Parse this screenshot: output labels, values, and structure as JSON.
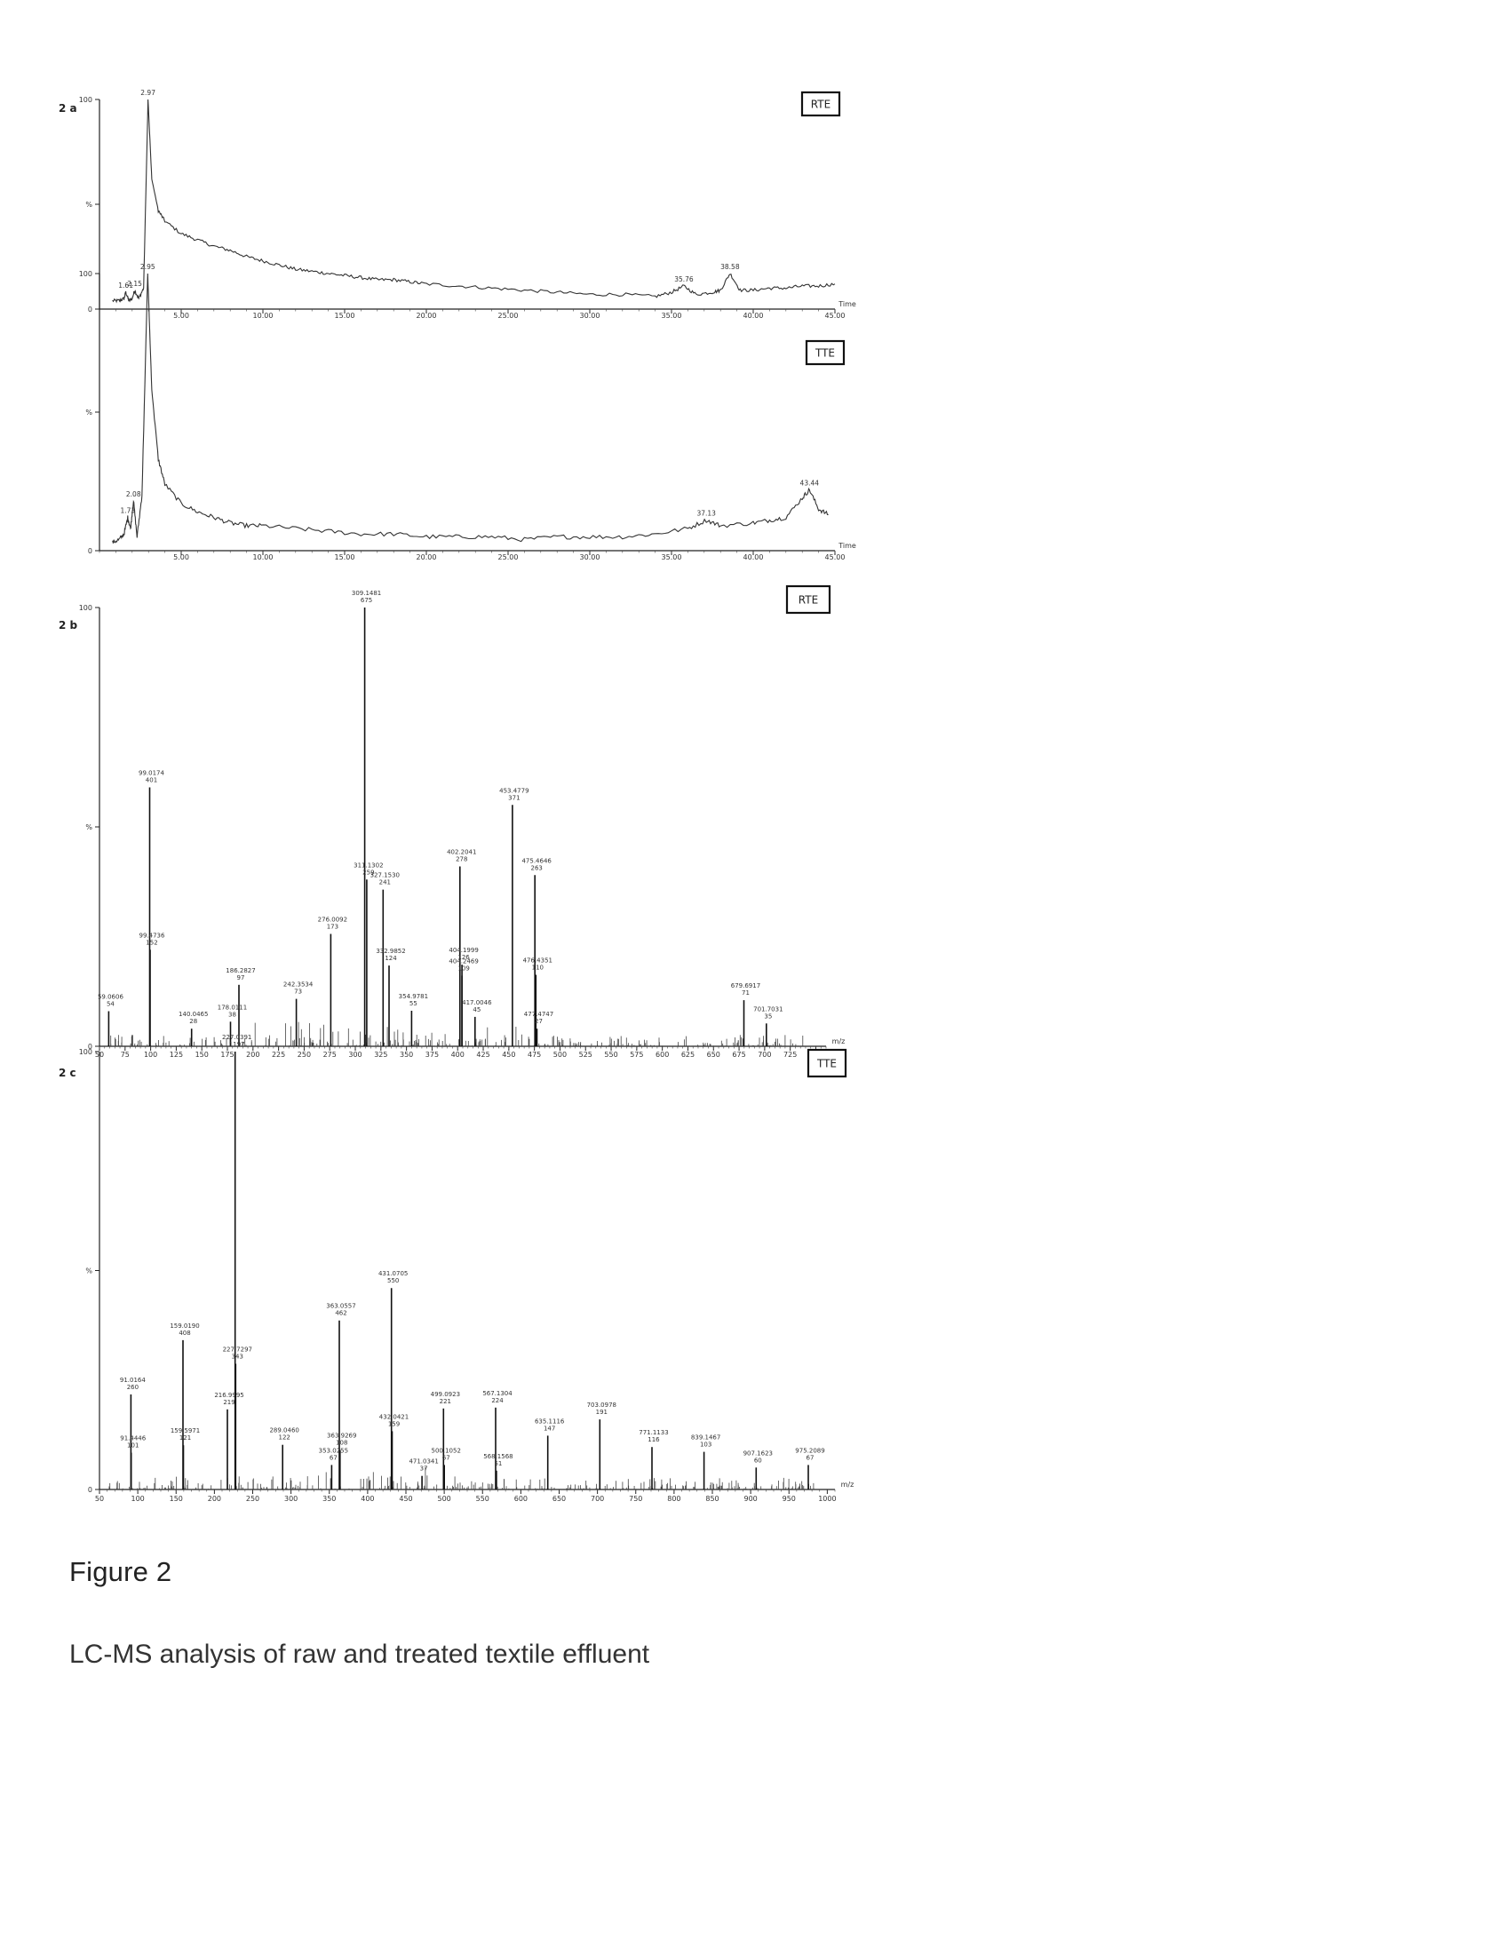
{
  "figure": {
    "title": "Figure 2",
    "caption": "LC-MS analysis of raw and treated textile effluent"
  },
  "chart_data": [
    {
      "type": "line",
      "panel_label": "2 a",
      "sample_label": "RTE",
      "xlabel": "Time",
      "xlim": [
        0,
        45
      ],
      "ylim": [
        0,
        100
      ],
      "xticks": [
        "5.00",
        "10.00",
        "15.00",
        "20.00",
        "25.00",
        "30.00",
        "35.00",
        "40.00",
        "45.00"
      ],
      "yticks": [
        "0",
        "%",
        "100"
      ],
      "peak_labels": [
        {
          "x": 1.61,
          "label": "1.61"
        },
        {
          "x": 2.15,
          "label": "2.15"
        },
        {
          "x": 2.97,
          "label": "2.97"
        },
        {
          "x": 35.76,
          "label": "35.76"
        },
        {
          "x": 38.58,
          "label": "38.58"
        }
      ],
      "x": [
        0.8,
        1.2,
        1.5,
        1.61,
        1.8,
        2.0,
        2.15,
        2.4,
        2.7,
        2.97,
        3.2,
        3.6,
        4.0,
        5.0,
        6.0,
        7.0,
        8.0,
        9.0,
        10.0,
        11.0,
        12.0,
        13.0,
        14.0,
        15.0,
        16.0,
        17.0,
        18.0,
        19.0,
        20.0,
        22.0,
        24.0,
        26.0,
        28.0,
        30.0,
        32.0,
        34.0,
        35.0,
        35.76,
        36.5,
        37.5,
        38.0,
        38.58,
        39.2,
        40.0,
        41.0,
        42.0,
        43.0,
        44.0,
        45.0
      ],
      "values": [
        4,
        4,
        5,
        8,
        4,
        5,
        9,
        5,
        10,
        100,
        62,
        47,
        42,
        36,
        33,
        30,
        28,
        25,
        23,
        21,
        19,
        18,
        17,
        16,
        15,
        14,
        14,
        13,
        12,
        11,
        10,
        9,
        8,
        7,
        7,
        6,
        8,
        11,
        7,
        8,
        9,
        17,
        9,
        9,
        10,
        10,
        11,
        11,
        12
      ]
    },
    {
      "type": "line",
      "panel_label": "",
      "sample_label": "TTE",
      "xlabel": "Time",
      "xlim": [
        0,
        45
      ],
      "ylim": [
        0,
        100
      ],
      "xticks": [
        "5.00",
        "10.00",
        "15.00",
        "20.00",
        "25.00",
        "30.00",
        "35.00",
        "40.00",
        "45.00"
      ],
      "yticks": [
        "0",
        "%",
        "100"
      ],
      "peak_labels": [
        {
          "x": 1.73,
          "label": "1.73"
        },
        {
          "x": 2.08,
          "label": "2.08"
        },
        {
          "x": 2.95,
          "label": "2.95"
        },
        {
          "x": 37.13,
          "label": "37.13"
        },
        {
          "x": 43.44,
          "label": "43.44"
        }
      ],
      "x": [
        0.8,
        1.2,
        1.5,
        1.73,
        1.9,
        2.08,
        2.3,
        2.6,
        2.95,
        3.2,
        3.6,
        4.0,
        5.0,
        6.0,
        7.0,
        8.0,
        9.0,
        10.0,
        12.0,
        14.0,
        16.0,
        18.0,
        20.0,
        22.0,
        24.0,
        26.0,
        28.0,
        30.0,
        32.0,
        34.0,
        36.0,
        37.13,
        38.0,
        40.0,
        41.0,
        42.0,
        43.0,
        43.44,
        44.0,
        44.6
      ],
      "values": [
        3,
        4,
        6,
        12,
        8,
        18,
        5,
        20,
        100,
        58,
        33,
        24,
        17,
        14,
        12,
        10,
        9,
        9,
        8,
        7,
        6,
        6,
        5,
        5,
        5,
        4,
        5,
        5,
        5,
        6,
        8,
        11,
        9,
        10,
        11,
        12,
        19,
        22,
        15,
        13
      ]
    },
    {
      "type": "bar",
      "panel_label": "2 b",
      "sample_label": "RTE",
      "xlabel": "m/z",
      "xlim": [
        50,
        760
      ],
      "ylim": [
        0,
        100
      ],
      "xticks": [
        "50",
        "75",
        "100",
        "125",
        "150",
        "175",
        "200",
        "225",
        "250",
        "275",
        "300",
        "325",
        "350",
        "375",
        "400",
        "425",
        "450",
        "475",
        "500",
        "525",
        "550",
        "575",
        "600",
        "625",
        "650",
        "675",
        "700",
        "725",
        "750"
      ],
      "yticks": [
        "0",
        "%",
        "100"
      ],
      "x": [
        59.0606,
        99.0174,
        99.4736,
        140.0465,
        178.0111,
        186.2827,
        242.3534,
        276.0092,
        309.1481,
        311.1302,
        327.153,
        332.9852,
        354.9781,
        402.2041,
        404.1999,
        404.2469,
        417.0046,
        453.4779,
        475.4646,
        476.4351,
        477.4747,
        679.6917,
        701.7031
      ],
      "values": [
        8,
        59,
        22,
        4,
        5.6,
        14,
        10.8,
        25.6,
        100,
        38,
        35.7,
        18.4,
        8.1,
        41,
        18.6,
        16.1,
        6.7,
        55,
        39,
        16.3,
        4,
        10.5,
        5.2
      ],
      "labels": [
        {
          "mz": "59.0606",
          "intensity": "54"
        },
        {
          "mz": "99.0174",
          "intensity": "401"
        },
        {
          "mz": "99.4736",
          "intensity": "152"
        },
        {
          "mz": "140.0465",
          "intensity": "28"
        },
        {
          "mz": "178.0111",
          "intensity": "38"
        },
        {
          "mz": "186.2827",
          "intensity": "97"
        },
        {
          "mz": "242.3534",
          "intensity": "73"
        },
        {
          "mz": "276.0092",
          "intensity": "173"
        },
        {
          "mz": "309.1481",
          "intensity": "675"
        },
        {
          "mz": "311.1302",
          "intensity": "259"
        },
        {
          "mz": "327.1530",
          "intensity": "241"
        },
        {
          "mz": "332.9852",
          "intensity": "124"
        },
        {
          "mz": "354.9781",
          "intensity": "55"
        },
        {
          "mz": "402.2041",
          "intensity": "278"
        },
        {
          "mz": "404.1999",
          "intensity": "126"
        },
        {
          "mz": "404.2469",
          "intensity": "109"
        },
        {
          "mz": "417.0046",
          "intensity": "45"
        },
        {
          "mz": "453.4779",
          "intensity": "371"
        },
        {
          "mz": "475.4646",
          "intensity": "263"
        },
        {
          "mz": "476.4351",
          "intensity": "110"
        },
        {
          "mz": "477.4747",
          "intensity": "27"
        },
        {
          "mz": "679.6917",
          "intensity": "71"
        },
        {
          "mz": "701.7031",
          "intensity": "35"
        }
      ]
    },
    {
      "type": "bar",
      "panel_label": "2 c",
      "sample_label": "TTE",
      "xlabel": "m/z",
      "xlim": [
        50,
        1010
      ],
      "ylim": [
        0,
        100
      ],
      "xticks": [
        "50",
        "100",
        "150",
        "200",
        "250",
        "300",
        "350",
        "400",
        "450",
        "500",
        "550",
        "600",
        "650",
        "700",
        "750",
        "800",
        "850",
        "900",
        "950",
        "1000"
      ],
      "yticks": [
        "0",
        "%",
        "100"
      ],
      "x": [
        91.0164,
        91.4446,
        159.019,
        159.5971,
        216.9995,
        227.0391,
        227.7297,
        289.046,
        353.0255,
        363.0557,
        363.9269,
        431.0705,
        432.0421,
        471.0341,
        499.0923,
        500.1052,
        567.1304,
        568.1568,
        635.1116,
        703.0978,
        771.1133,
        839.1467,
        907.1623,
        975.2089
      ],
      "values": [
        21.7,
        8.4,
        34.1,
        10.1,
        18.3,
        100,
        28.7,
        10.2,
        5.6,
        38.6,
        9,
        46,
        13.3,
        3.1,
        18.5,
        5.6,
        18.7,
        4.3,
        12.3,
        16,
        9.7,
        8.6,
        5,
        5.6
      ],
      "labels": [
        {
          "mz": "91.0164",
          "intensity": "260"
        },
        {
          "mz": "91.4446",
          "intensity": "101"
        },
        {
          "mz": "159.0190",
          "intensity": "408"
        },
        {
          "mz": "159.5971",
          "intensity": "121"
        },
        {
          "mz": "216.9995",
          "intensity": "219"
        },
        {
          "mz": "227.0391",
          "intensity": "1197"
        },
        {
          "mz": "227.7297",
          "intensity": "343"
        },
        {
          "mz": "289.0460",
          "intensity": "122"
        },
        {
          "mz": "353.0255",
          "intensity": "67"
        },
        {
          "mz": "363.0557",
          "intensity": "462"
        },
        {
          "mz": "363.9269",
          "intensity": "108"
        },
        {
          "mz": "431.0705",
          "intensity": "550"
        },
        {
          "mz": "432.0421",
          "intensity": "159"
        },
        {
          "mz": "471.0341",
          "intensity": "37"
        },
        {
          "mz": "499.0923",
          "intensity": "221"
        },
        {
          "mz": "500.1052",
          "intensity": "67"
        },
        {
          "mz": "567.1304",
          "intensity": "224"
        },
        {
          "mz": "568.1568",
          "intensity": "51"
        },
        {
          "mz": "635.1116",
          "intensity": "147"
        },
        {
          "mz": "703.0978",
          "intensity": "191"
        },
        {
          "mz": "771.1133",
          "intensity": "116"
        },
        {
          "mz": "839.1467",
          "intensity": "103"
        },
        {
          "mz": "907.1623",
          "intensity": "60"
        },
        {
          "mz": "975.2089",
          "intensity": "67"
        }
      ]
    }
  ]
}
